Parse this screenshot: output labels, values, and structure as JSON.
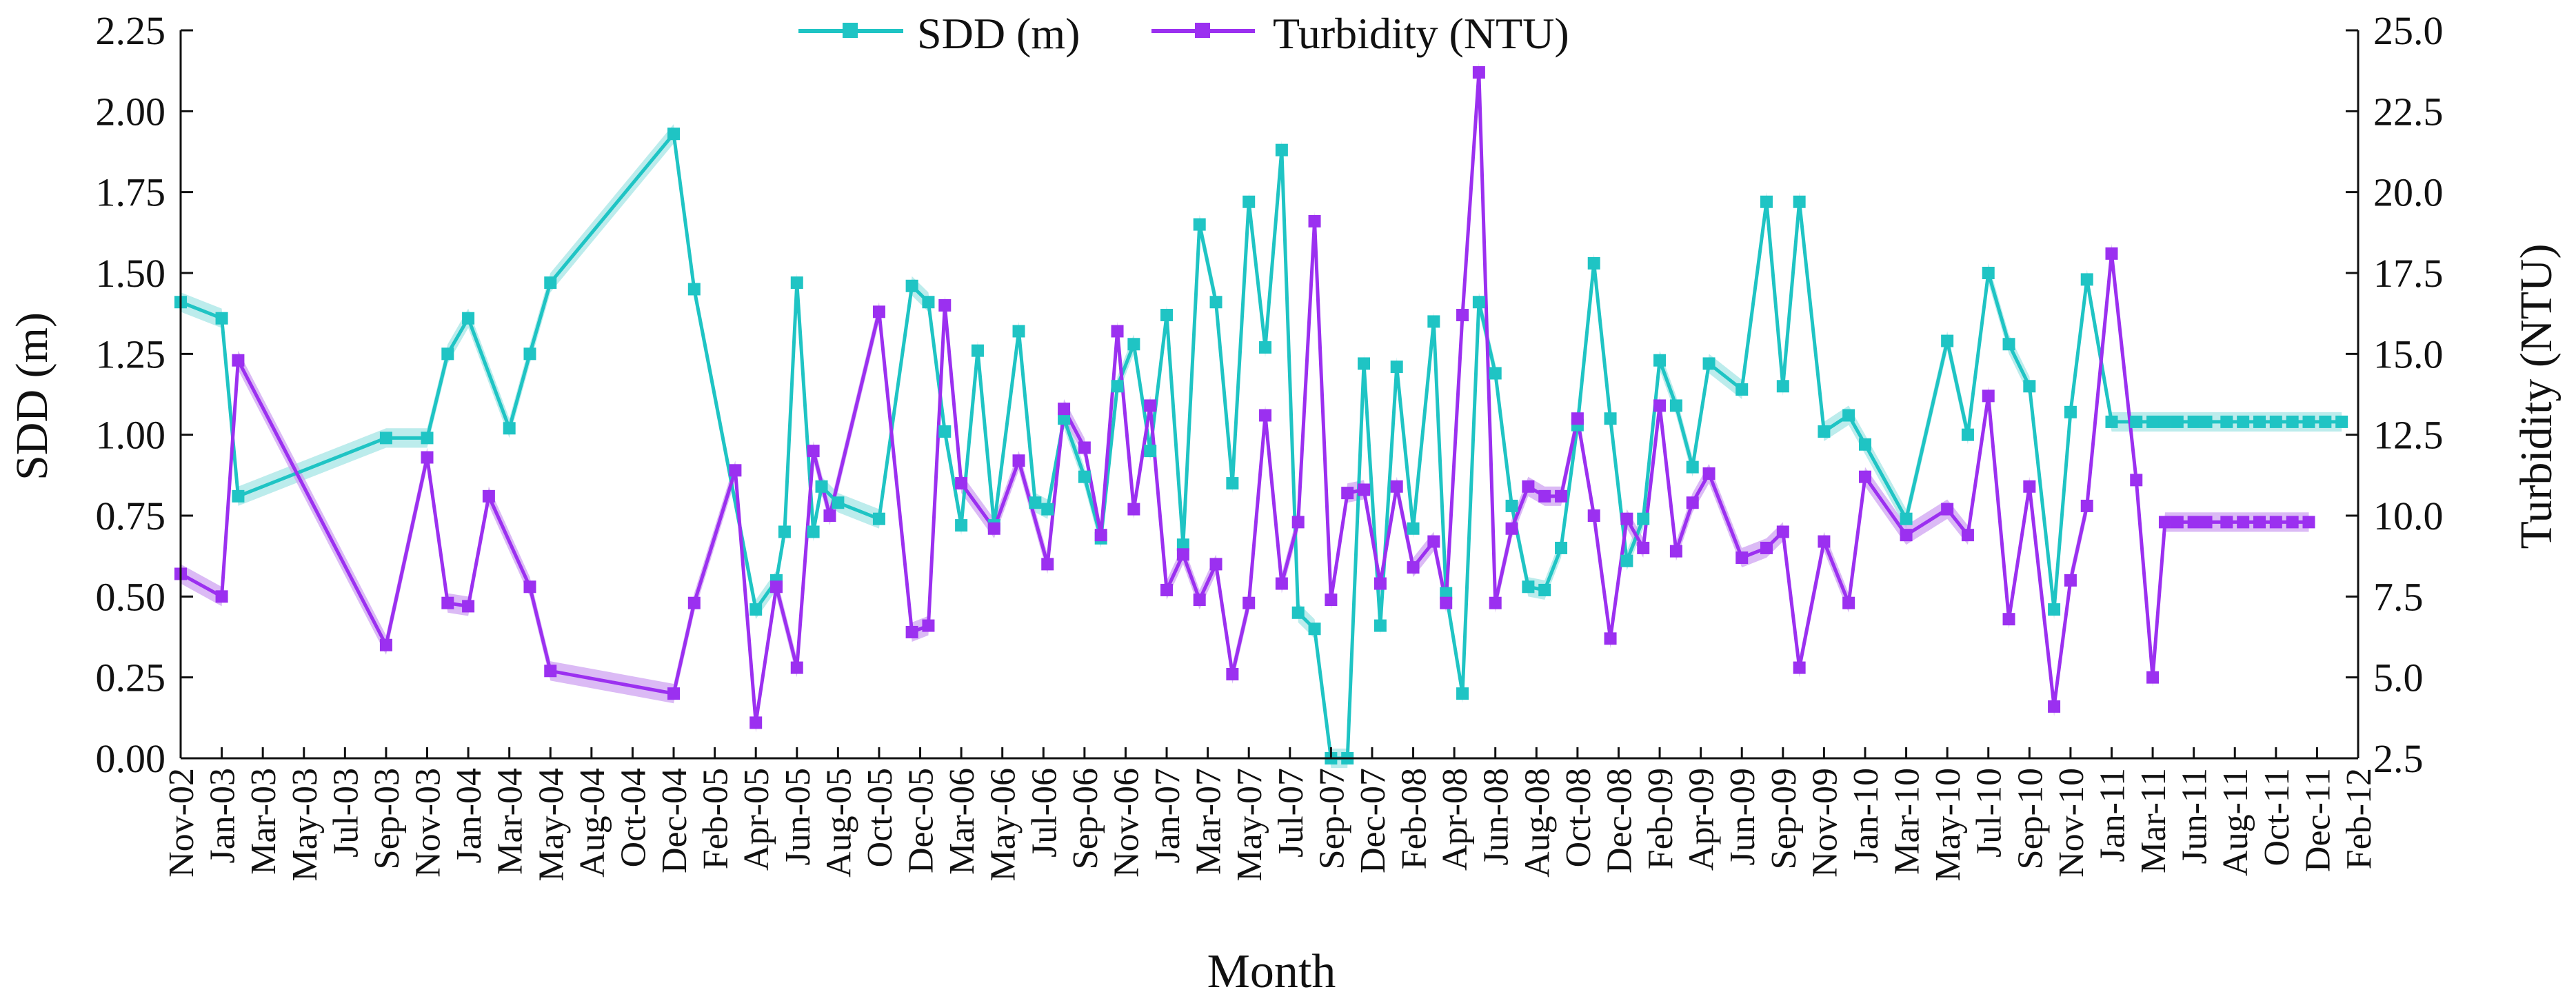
{
  "chart_data": {
    "type": "line",
    "title": "",
    "xlabel": "Month",
    "ylabel_left": "SDD (m)",
    "ylabel_right": "Turbidity (NTU)",
    "ylim_left": [
      0,
      2.25
    ],
    "ylim_right": [
      2.5,
      25.0
    ],
    "yticks_left": [
      "0.00",
      "0.25",
      "0.50",
      "0.75",
      "1.00",
      "1.25",
      "1.50",
      "1.75",
      "2.00",
      "2.25"
    ],
    "yticks_right": [
      "2.5",
      "5.0",
      "7.5",
      "10.0",
      "12.5",
      "15.0",
      "17.5",
      "20.0",
      "22.5",
      "25.0"
    ],
    "x_tick_labels": [
      "Nov-02",
      "Jan-03",
      "Mar-03",
      "May-03",
      "Jul-03",
      "Sep-03",
      "Nov-03",
      "Jan-04",
      "Mar-04",
      "May-04",
      "Aug-04",
      "Oct-04",
      "Dec-04",
      "Feb-05",
      "Apr-05",
      "Jun-05",
      "Aug-05",
      "Oct-05",
      "Dec-05",
      "Mar-06",
      "May-06",
      "Jul-06",
      "Sep-06",
      "Nov-06",
      "Jan-07",
      "Mar-07",
      "May-07",
      "Jul-07",
      "Sep-07",
      "Dec-07",
      "Feb-08",
      "Apr-08",
      "Jun-08",
      "Aug-08",
      "Oct-08",
      "Dec-08",
      "Feb-09",
      "Apr-09",
      "Jun-09",
      "Sep-09",
      "Nov-09",
      "Jan-10",
      "Mar-10",
      "May-10",
      "Jul-10",
      "Sep-10",
      "Nov-10",
      "Jan-11",
      "Mar-11",
      "Jun-11",
      "Aug-11",
      "Oct-11",
      "Dec-11",
      "Feb-12"
    ],
    "legend_position": "top-center",
    "series": [
      {
        "name": "SDD (m)",
        "axis": "left",
        "color": "#1fc4c4",
        "band_color": "#a6e6e6",
        "marker": "square",
        "t": [
          0.0,
          1.0,
          1.4,
          5.0,
          6.0,
          6.5,
          7.0,
          8.0,
          8.5,
          9.0,
          12.0,
          12.5,
          14.0,
          14.5,
          14.7,
          15.0,
          15.4,
          15.6,
          16.0,
          17.0,
          17.8,
          18.2,
          18.6,
          19.0,
          19.4,
          19.8,
          20.4,
          20.8,
          21.1,
          21.5,
          22.0,
          22.4,
          22.8,
          23.2,
          23.6,
          24.0,
          24.4,
          24.8,
          25.2,
          25.6,
          26.0,
          26.4,
          26.8,
          27.2,
          27.6,
          28.0,
          28.4,
          28.8,
          29.2,
          29.6,
          30.0,
          30.5,
          30.8,
          31.2,
          31.6,
          32.0,
          32.4,
          32.8,
          33.2,
          33.6,
          34.0,
          34.4,
          34.8,
          35.2,
          35.6,
          36.0,
          36.4,
          36.8,
          37.2,
          38.0,
          38.6,
          39.0,
          39.4,
          40.0,
          40.6,
          41.0,
          42.0,
          43.0,
          43.5,
          44.0,
          44.5,
          45.0,
          45.6,
          46.0,
          46.4,
          47.0,
          47.6,
          48.0,
          48.3,
          48.6,
          49.0,
          49.3,
          49.8,
          50.2,
          50.6,
          51.0,
          51.4,
          51.8,
          52.2,
          52.6
        ],
        "values": [
          1.41,
          1.36,
          0.81,
          0.99,
          0.99,
          1.25,
          1.36,
          1.02,
          1.25,
          1.47,
          1.93,
          1.45,
          0.46,
          0.55,
          0.7,
          1.47,
          0.7,
          0.84,
          0.79,
          0.74,
          1.46,
          1.41,
          1.01,
          0.72,
          1.26,
          0.72,
          1.32,
          0.79,
          0.77,
          1.05,
          0.87,
          0.68,
          1.15,
          1.28,
          0.95,
          1.37,
          0.66,
          1.65,
          1.41,
          0.85,
          1.72,
          1.27,
          1.88,
          0.45,
          0.4,
          0.0,
          0.0,
          1.22,
          0.41,
          1.21,
          0.71,
          1.35,
          0.51,
          0.2,
          1.41,
          1.19,
          0.78,
          0.53,
          0.52,
          0.65,
          1.03,
          1.53,
          1.05,
          0.61,
          0.74,
          1.23,
          1.09,
          0.9,
          1.22,
          1.14,
          1.72,
          1.15,
          1.72,
          1.01,
          1.06,
          0.97,
          0.74,
          1.29,
          1.0,
          1.5,
          1.28,
          1.15,
          0.46,
          1.07,
          1.48,
          1.04,
          1.04,
          1.04,
          1.04,
          1.04,
          1.04,
          1.04,
          1.04,
          1.04,
          1.04,
          1.04,
          1.04,
          1.04,
          1.04,
          1.04
        ]
      },
      {
        "name": "Turbidity (NTU)",
        "axis": "right",
        "color": "#9b30f0",
        "band_color": "#cfa3f2",
        "marker": "square",
        "t": [
          0.0,
          1.0,
          1.4,
          5.0,
          6.0,
          6.5,
          7.0,
          7.5,
          8.5,
          9.0,
          12.0,
          12.5,
          13.5,
          14.0,
          14.5,
          15.0,
          15.4,
          15.8,
          17.0,
          17.8,
          18.2,
          18.6,
          19.0,
          19.8,
          20.4,
          21.1,
          21.5,
          22.0,
          22.4,
          22.8,
          23.2,
          23.6,
          24.0,
          24.4,
          24.8,
          25.2,
          25.6,
          26.0,
          26.4,
          26.8,
          27.2,
          27.6,
          28.0,
          28.4,
          28.8,
          29.2,
          29.6,
          30.0,
          30.5,
          30.8,
          31.2,
          31.6,
          32.0,
          32.4,
          32.8,
          33.2,
          33.6,
          34.0,
          34.4,
          34.8,
          35.2,
          35.6,
          36.0,
          36.4,
          36.8,
          37.2,
          38.0,
          38.6,
          39.0,
          39.4,
          40.0,
          40.6,
          41.0,
          42.0,
          43.0,
          43.5,
          44.0,
          44.5,
          45.0,
          45.6,
          46.0,
          46.4,
          47.0,
          47.6,
          48.0,
          48.3,
          48.6,
          49.0,
          49.3,
          49.8,
          50.2,
          50.6,
          51.0,
          51.4,
          51.8
        ],
        "values": [
          8.2,
          7.5,
          14.8,
          6.0,
          11.8,
          7.3,
          7.2,
          10.6,
          7.8,
          5.2,
          4.5,
          7.3,
          11.4,
          3.6,
          7.8,
          5.3,
          12.0,
          10.0,
          16.3,
          6.4,
          6.6,
          16.5,
          11.0,
          9.6,
          11.7,
          8.5,
          13.3,
          12.1,
          9.4,
          15.7,
          10.2,
          13.4,
          7.7,
          8.8,
          7.4,
          8.5,
          5.1,
          7.3,
          13.1,
          7.9,
          9.8,
          19.1,
          7.4,
          10.7,
          10.8,
          7.9,
          10.9,
          8.4,
          9.2,
          7.3,
          16.2,
          23.7,
          7.3,
          9.6,
          10.9,
          10.6,
          10.6,
          13.0,
          10.0,
          6.2,
          9.9,
          9.0,
          13.4,
          8.9,
          10.4,
          11.3,
          8.7,
          9.0,
          9.5,
          5.3,
          9.2,
          7.3,
          11.2,
          9.4,
          10.2,
          9.4,
          13.7,
          6.8,
          10.9,
          4.1,
          8.0,
          10.3,
          18.1,
          11.1,
          5.0,
          9.8,
          9.8,
          9.8,
          9.8,
          9.8,
          9.8,
          9.8,
          9.8,
          9.8,
          9.8
        ]
      }
    ]
  }
}
